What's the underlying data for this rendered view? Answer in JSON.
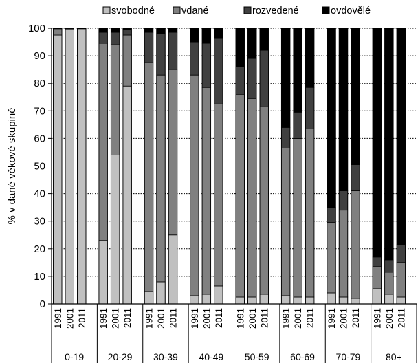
{
  "chart_data": {
    "type": "bar",
    "stacked": true,
    "ylabel": "% v dané věkové skupině",
    "ylim": [
      0,
      100
    ],
    "yticks": [
      0,
      10,
      20,
      30,
      40,
      50,
      60,
      70,
      80,
      90,
      100
    ],
    "legend_position": "top",
    "groups": [
      "0-19",
      "20-29",
      "30-39",
      "40-49",
      "50-59",
      "60-69",
      "70-79",
      "80+"
    ],
    "years": [
      "1991",
      "2001",
      "2011"
    ],
    "series": [
      {
        "name": "svobodné",
        "color": "#c0c0c0",
        "values": [
          97.5,
          99.5,
          99.8,
          23,
          54,
          79,
          4.5,
          8,
          25,
          3,
          3.5,
          6.5,
          2.5,
          2.5,
          3.5,
          3,
          2.5,
          2.5,
          4,
          2.5,
          2,
          5.5,
          3.5,
          2.5
        ]
      },
      {
        "name": "vdané",
        "color": "#808080",
        "values": [
          2.3,
          0.4,
          0.15,
          71.5,
          40,
          18.5,
          83,
          75,
          60,
          80,
          75,
          66,
          73.5,
          72,
          68,
          53.5,
          57.5,
          61,
          25.5,
          31.5,
          39,
          8,
          8,
          12.5
        ]
      },
      {
        "name": "rozvedené",
        "color": "#404040",
        "values": [
          0.1,
          0.05,
          0.02,
          4,
          4.5,
          2,
          11,
          15,
          13.5,
          12,
          16,
          24,
          10,
          14.5,
          20.5,
          7.5,
          9.5,
          15,
          5.5,
          7,
          9.5,
          3.5,
          4.5,
          6.5
        ]
      },
      {
        "name": "ovdovělé",
        "color": "#000000",
        "values": [
          0.1,
          0.05,
          0.03,
          1.5,
          1.5,
          0.5,
          1.5,
          2,
          1.5,
          5,
          5.5,
          3.5,
          14,
          11,
          8,
          36,
          30.5,
          21.5,
          65,
          59,
          49.5,
          83,
          84,
          78.5
        ]
      }
    ]
  }
}
